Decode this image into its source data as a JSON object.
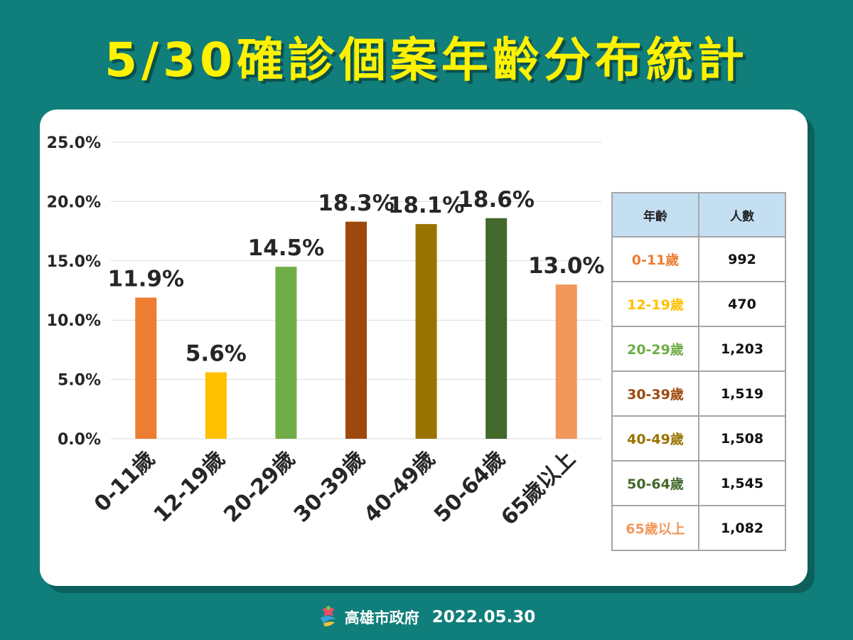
{
  "title": "5/30確診個案年齡分布統計",
  "chart_data": {
    "type": "bar",
    "categories": [
      "0-11歲",
      "12-19歲",
      "20-29歲",
      "30-39歲",
      "40-49歲",
      "50-64歲",
      "65歲以上"
    ],
    "values": [
      11.9,
      5.6,
      14.5,
      18.3,
      18.1,
      18.6,
      13.0
    ],
    "data_labels": [
      "11.9%",
      "5.6%",
      "14.5%",
      "18.3%",
      "18.1%",
      "18.6%",
      "13.0%"
    ],
    "colors": [
      "#ed7d31",
      "#ffc000",
      "#70ad47",
      "#9e480e",
      "#997300",
      "#43682b",
      "#f1975a"
    ],
    "yticks": [
      "0.0%",
      "5.0%",
      "10.0%",
      "15.0%",
      "20.0%",
      "25.0%"
    ],
    "ylim": [
      0,
      25
    ],
    "grid": true
  },
  "table": {
    "headers": [
      "年齡",
      "人數"
    ],
    "rows": [
      {
        "age": "0-11歲",
        "count": "992",
        "color": "#ed7d31"
      },
      {
        "age": "12-19歲",
        "count": "470",
        "color": "#ffc000"
      },
      {
        "age": "20-29歲",
        "count": "1,203",
        "color": "#70ad47"
      },
      {
        "age": "30-39歲",
        "count": "1,519",
        "color": "#9e480e"
      },
      {
        "age": "40-49歲",
        "count": "1,508",
        "color": "#997300"
      },
      {
        "age": "50-64歲",
        "count": "1,545",
        "color": "#43682b"
      },
      {
        "age": "65歲以上",
        "count": "1,082",
        "color": "#f1975a"
      }
    ]
  },
  "footer": {
    "org": "高雄市政府",
    "date": "2022.05.30",
    "logo_icon": "kaohsiung-city-logo-icon"
  },
  "colors": {
    "background": "#107e7a",
    "title": "#fff200",
    "card": "#ffffff",
    "table_header": "#c5dff2"
  }
}
